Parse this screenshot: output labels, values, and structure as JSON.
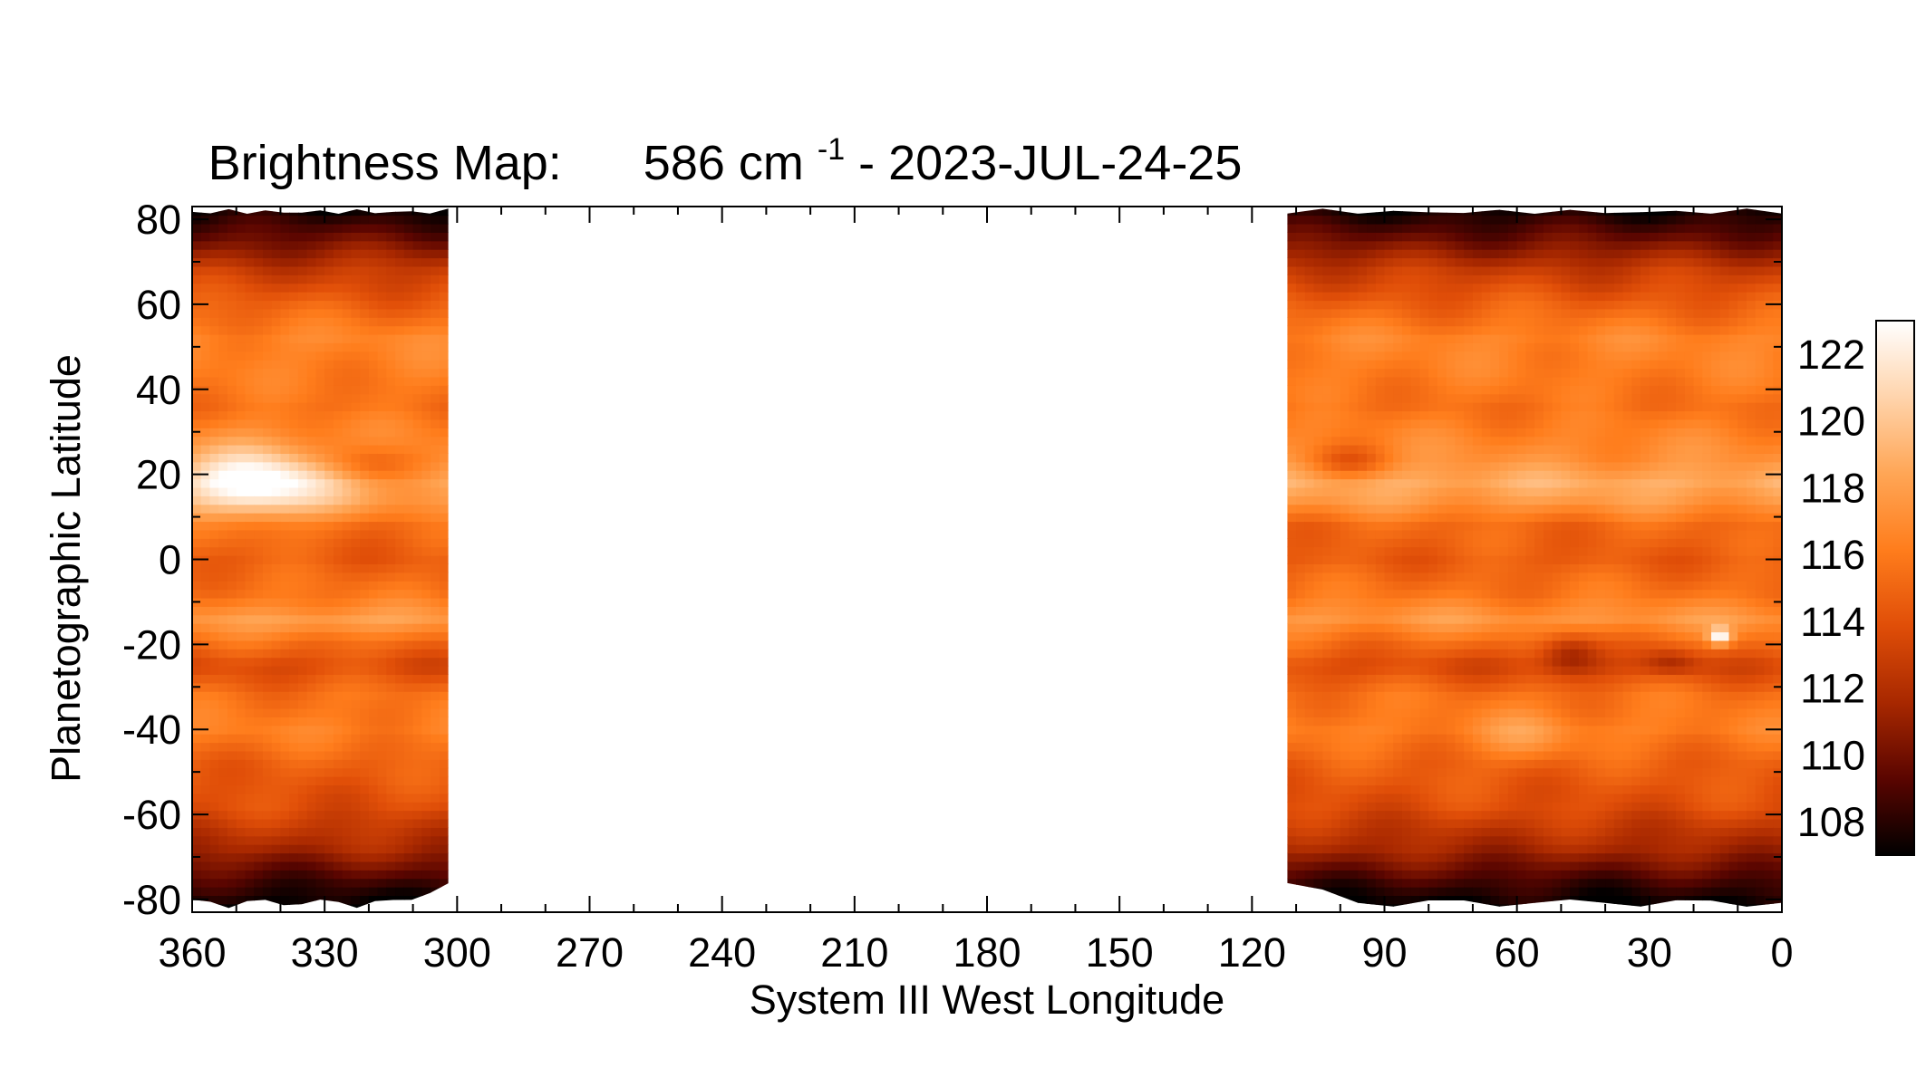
{
  "chart_data": {
    "type": "heatmap",
    "title": {
      "prefix": "Brightness Map:",
      "wavenumber": "586 cm",
      "superscript": "-1",
      "suffix": " - 2023-JUL-24-25"
    },
    "xlabel": "System III West Longitude",
    "ylabel": "Planetographic Latitude",
    "xlim": [
      360,
      0
    ],
    "ylim": [
      -83,
      83
    ],
    "x_reversed": true,
    "x_ticks": [
      360,
      330,
      300,
      270,
      240,
      210,
      180,
      150,
      120,
      90,
      60,
      30,
      0
    ],
    "x_tick_labels": [
      "360",
      "330",
      "300",
      "270",
      "240",
      "210",
      "180",
      "150",
      "120",
      "90",
      "60",
      "30",
      "0"
    ],
    "y_ticks": [
      80,
      60,
      40,
      20,
      0,
      -20,
      -40,
      -60,
      -80
    ],
    "y_tick_labels": [
      "80",
      "60",
      "40",
      "20",
      "0",
      "-20",
      "-40",
      "-60",
      "-80"
    ],
    "data_regions": [
      {
        "lon_start": 360,
        "lon_end": 302
      },
      {
        "lon_start": 112,
        "lon_end": 0
      }
    ],
    "colorbar": {
      "vmin": 107,
      "vmax": 123,
      "ticks": [
        122,
        120,
        118,
        116,
        114,
        112,
        110,
        108
      ],
      "tick_labels": [
        "122",
        "120",
        "118",
        "116",
        "114",
        "112",
        "110",
        "108"
      ],
      "colormap": [
        "#000000",
        "#5a0500",
        "#a82800",
        "#e04e08",
        "#ff7d1c",
        "#ffa656",
        "#ffd4ac",
        "#ffffff"
      ]
    },
    "latitude_profile": [
      {
        "lat": -83,
        "value": 106.5
      },
      {
        "lat": -76,
        "value": 108.5
      },
      {
        "lat": -68,
        "value": 111.5
      },
      {
        "lat": -58,
        "value": 113.8
      },
      {
        "lat": -48,
        "value": 114.8
      },
      {
        "lat": -40,
        "value": 116.3
      },
      {
        "lat": -32,
        "value": 115.6
      },
      {
        "lat": -25,
        "value": 113.6
      },
      {
        "lat": -20,
        "value": 115.2
      },
      {
        "lat": -14,
        "value": 117.6
      },
      {
        "lat": -8,
        "value": 115.8
      },
      {
        "lat": 0,
        "value": 114.6
      },
      {
        "lat": 8,
        "value": 115.2
      },
      {
        "lat": 14,
        "value": 117.8
      },
      {
        "lat": 18,
        "value": 118.8
      },
      {
        "lat": 24,
        "value": 117.2
      },
      {
        "lat": 30,
        "value": 116.4
      },
      {
        "lat": 36,
        "value": 115.6
      },
      {
        "lat": 44,
        "value": 116.2
      },
      {
        "lat": 52,
        "value": 116.6
      },
      {
        "lat": 60,
        "value": 114.8
      },
      {
        "lat": 68,
        "value": 112.8
      },
      {
        "lat": 76,
        "value": 109.6
      },
      {
        "lat": 83,
        "value": 107.2
      }
    ],
    "features": [
      {
        "lon": 345,
        "lat": 18,
        "dlon": 16,
        "dlat": 9,
        "value": 5.5
      },
      {
        "lon": 320,
        "lat": 22,
        "dlon": 10,
        "dlat": 5,
        "value": -2.6
      },
      {
        "lon": 98,
        "lat": 23,
        "dlon": 9,
        "dlat": 4,
        "value": -2.6
      },
      {
        "lon": 48,
        "lat": -22,
        "dlon": 7,
        "dlat": 5,
        "value": -3.6
      },
      {
        "lon": 25,
        "lat": -24,
        "dlon": 6,
        "dlat": 3,
        "value": -2.2
      },
      {
        "lon": 14,
        "lat": -18,
        "dlon": 2.5,
        "dlat": 2,
        "value": 7.0
      },
      {
        "lon": 58,
        "lat": -42,
        "dlon": 10,
        "dlat": 6,
        "value": 1.8
      },
      {
        "lon": 330,
        "lat": -15,
        "dlon": 14,
        "dlat": 3,
        "value": 1.0
      }
    ]
  }
}
